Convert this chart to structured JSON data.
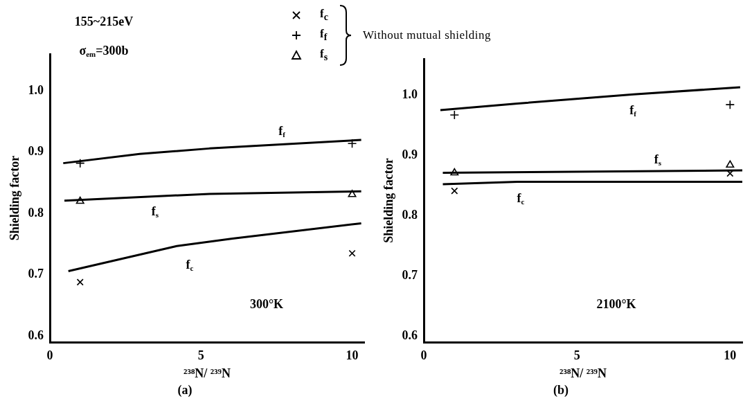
{
  "chart_data": [
    {
      "type": "line",
      "title": "(a)",
      "xlabel": "²³⁸N/ ²³⁹N",
      "ylabel": "Shielding factor",
      "legend": "top",
      "legend_title": "Without mutual shielding",
      "xlim": [
        0,
        10.4
      ],
      "ylim": [
        0.59,
        1.06
      ],
      "xticks": [
        0,
        5,
        10
      ],
      "yticks": [
        0.6,
        0.7,
        0.8,
        0.9,
        {
          "value": 1,
          "label": "1.0"
        }
      ],
      "grid": false,
      "series": [
        {
          "type": "line",
          "color": "#000000",
          "marker": "none",
          "x": [
            0.44,
            2.97,
            5.28,
            10.3
          ],
          "values": [
            0.882,
            0.897,
            0.906,
            0.92
          ]
        },
        {
          "type": "line",
          "color": "#000000",
          "marker": "none",
          "x": [
            0.48,
            5.28,
            10.3
          ],
          "values": [
            0.821,
            0.832,
            0.836
          ]
        },
        {
          "type": "line",
          "color": "#000000",
          "marker": "none",
          "x": [
            0.61,
            4.2,
            6.04,
            10.3
          ],
          "values": [
            0.706,
            0.747,
            0.759,
            0.784
          ]
        },
        {
          "type": "scatter",
          "name": "f$_{c}$",
          "color": "#000000",
          "marker": "x",
          "x": [
            1,
            10
          ],
          "values": [
            0.688,
            0.735
          ]
        },
        {
          "type": "scatter",
          "name": "f$_{f}$",
          "color": "#000000",
          "marker": "cross",
          "x": [
            1,
            10
          ],
          "values": [
            0.882,
            0.914
          ]
        },
        {
          "type": "scatter",
          "name": "f$_{s}$",
          "color": "#000000",
          "marker": "triangle",
          "x": [
            1,
            10
          ],
          "values": [
            0.82,
            0.831
          ]
        }
      ],
      "annotations": [
        "155~215eV",
        "σ$_{em}$=300b",
        "f$_{f}$",
        "f$_{s}$",
        "f$_{c}$",
        "300°K"
      ]
    },
    {
      "type": "line",
      "title": "(b)",
      "xlabel": "²³⁸N/ ²³⁹N",
      "ylabel": "Shielding factor",
      "xlim": [
        0,
        10.4
      ],
      "ylim": [
        0.59,
        1.06
      ],
      "xticks": [
        0,
        5,
        10
      ],
      "yticks": [
        0.6,
        0.7,
        0.8,
        0.9,
        {
          "value": 1,
          "label": "1.0"
        }
      ],
      "grid": false,
      "series": [
        {
          "type": "line",
          "color": "#000000",
          "marker": "none",
          "x": [
            0.54,
            3.06,
            6.85,
            10.33
          ],
          "values": [
            0.975,
            0.986,
            1.001,
            1.013
          ]
        },
        {
          "type": "line",
          "color": "#000000",
          "marker": "none",
          "x": [
            0.62,
            10.4
          ],
          "values": [
            0.871,
            0.875
          ]
        },
        {
          "type": "line",
          "color": "#000000",
          "marker": "none",
          "x": [
            0.62,
            3.06,
            10.4
          ],
          "values": [
            0.852,
            0.856,
            0.856
          ]
        },
        {
          "type": "scatter",
          "color": "#000000",
          "marker": "x",
          "x": [
            1,
            10
          ],
          "values": [
            0.841,
            0.87
          ]
        },
        {
          "type": "scatter",
          "color": "#000000",
          "marker": "cross",
          "x": [
            1,
            10
          ],
          "values": [
            0.967,
            0.984
          ]
        },
        {
          "type": "scatter",
          "color": "#000000",
          "marker": "triangle",
          "x": [
            1,
            10
          ],
          "values": [
            0.871,
            0.884
          ]
        }
      ],
      "annotations": [
        "f$_{f}$",
        "f$_{s}$",
        "f$_{c}$",
        "2100°K"
      ]
    }
  ]
}
